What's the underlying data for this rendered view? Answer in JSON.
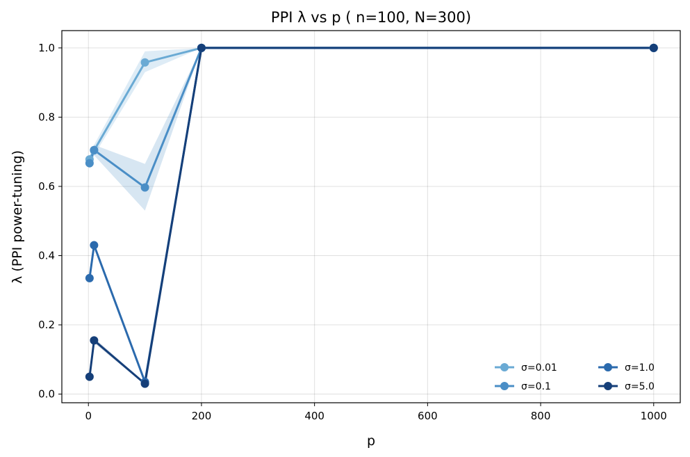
{
  "chart_data": {
    "type": "line",
    "title": "PPI λ vs p  ( n=100, N=300)",
    "xlabel": "p",
    "ylabel": "λ (PPI power-tuning)",
    "xlim": [
      -47,
      1047
    ],
    "ylim": [
      -0.025,
      1.05
    ],
    "xticks": [
      0,
      200,
      400,
      600,
      800,
      1000
    ],
    "yticks": [
      0.0,
      0.2,
      0.4,
      0.6,
      0.8,
      1.0
    ],
    "xtick_labels": [
      "0",
      "200",
      "400",
      "600",
      "800",
      "1000"
    ],
    "ytick_labels": [
      "0.0",
      "0.2",
      "0.4",
      "0.6",
      "0.8",
      "1.0"
    ],
    "grid": true,
    "legend_position": "lower-right",
    "legend_columns": 2,
    "x": [
      2,
      10,
      100,
      200,
      1000
    ],
    "series": [
      {
        "name": "σ=0.01",
        "color": "#6aaad4",
        "values": [
          0.678,
          0.704,
          0.958,
          1.0,
          1.0
        ],
        "band_low": [
          0.66,
          0.69,
          0.93,
          1.0,
          1.0
        ],
        "band_high": [
          0.69,
          0.72,
          0.99,
          1.0,
          1.0
        ]
      },
      {
        "name": "σ=0.1",
        "color": "#4a8ec6",
        "values": [
          0.667,
          0.705,
          0.597,
          1.0,
          1.0
        ],
        "band_low": [
          0.65,
          0.69,
          0.53,
          1.0,
          1.0
        ],
        "band_high": [
          0.68,
          0.72,
          0.665,
          1.0,
          1.0
        ]
      },
      {
        "name": "σ=1.0",
        "color": "#2b6aad",
        "values": [
          0.335,
          0.43,
          0.035,
          1.0,
          1.0
        ],
        "band_low": [
          0.33,
          0.425,
          0.03,
          1.0,
          1.0
        ],
        "band_high": [
          0.34,
          0.435,
          0.04,
          1.0,
          1.0
        ]
      },
      {
        "name": "σ=5.0",
        "color": "#153f79",
        "values": [
          0.05,
          0.155,
          0.03,
          1.0,
          1.0
        ],
        "band_low": [
          0.045,
          0.148,
          0.027,
          1.0,
          1.0
        ],
        "band_high": [
          0.055,
          0.162,
          0.033,
          1.0,
          1.0
        ]
      }
    ]
  }
}
